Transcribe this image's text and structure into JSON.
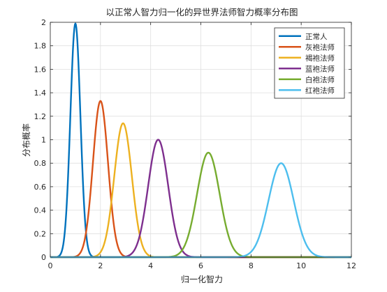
{
  "chart_data": {
    "type": "line",
    "title": "以正常人智力归一化的异世界法师智力概率分布图",
    "xlabel": "归一化智力",
    "ylabel": "分布概率",
    "xlim": [
      0,
      12
    ],
    "ylim": [
      0,
      2
    ],
    "xticks": [
      0,
      2,
      4,
      6,
      8,
      10,
      12
    ],
    "yticks": [
      0,
      0.2,
      0.4,
      0.6,
      0.8,
      1,
      1.2,
      1.4,
      1.6,
      1.8,
      2
    ],
    "grid": true,
    "legend_position": "top-right",
    "distribution": "normal",
    "series": [
      {
        "name": "正常人",
        "color": "#0072BD",
        "mean": 1.0,
        "std": 0.2,
        "peak": 1.99
      },
      {
        "name": "灰袍法师",
        "color": "#D95319",
        "mean": 2.0,
        "std": 0.3,
        "peak": 1.33
      },
      {
        "name": "褐袍法师",
        "color": "#EDB120",
        "mean": 2.9,
        "std": 0.35,
        "peak": 1.14
      },
      {
        "name": "蓝袍法师",
        "color": "#7E2F8E",
        "mean": 4.3,
        "std": 0.4,
        "peak": 1.0
      },
      {
        "name": "白袍法师",
        "color": "#77AC30",
        "mean": 6.3,
        "std": 0.45,
        "peak": 0.89
      },
      {
        "name": "红袍法师",
        "color": "#4DBEEE",
        "mean": 9.2,
        "std": 0.5,
        "peak": 0.8
      }
    ]
  }
}
